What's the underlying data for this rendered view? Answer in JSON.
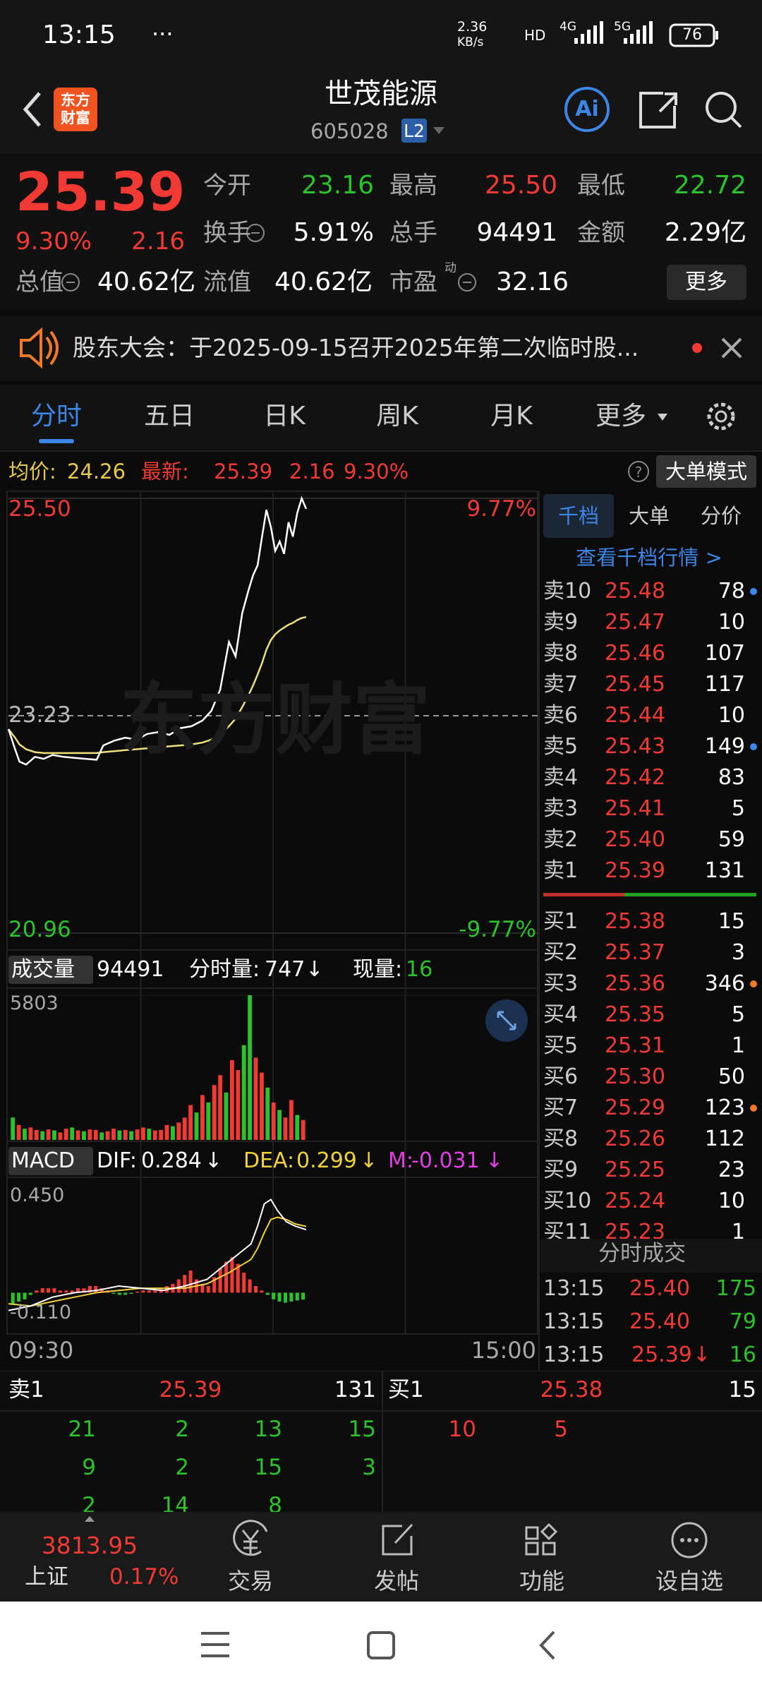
{
  "status_bar": {
    "time": "13:15",
    "dots": "···",
    "net_speed": "2.36",
    "net_unit": "KB/s",
    "hd": "HD",
    "net_4g": "4G",
    "net_5g": "5G",
    "battery": "76"
  },
  "header": {
    "logo": "东方财富",
    "title": "世茂能源",
    "code": "605028",
    "level": "L2",
    "ai": "Ai"
  },
  "quote": {
    "price": "25.39",
    "change_pct": "9.30%",
    "change": "2.16",
    "fields": [
      [
        {
          "label": "今开",
          "value": "23.16",
          "color": "#2bc22b"
        },
        {
          "label": "最高",
          "value": "25.50",
          "color": "#f03a33"
        },
        {
          "label": "最低",
          "value": "22.72",
          "color": "#2bc22b"
        }
      ],
      [
        {
          "label": "换手",
          "value": "5.91%",
          "color": "#ffffff"
        },
        {
          "label": "总手",
          "value": "94491",
          "color": "#ffffff"
        },
        {
          "label": "金额",
          "value": "2.29亿",
          "color": "#ffffff"
        }
      ],
      [
        {
          "label": "总值",
          "value": "40.62亿",
          "color": "#ffffff"
        },
        {
          "label": "流值",
          "value": "40.62亿",
          "color": "#ffffff"
        },
        {
          "label": "市盈",
          "value": "32.16",
          "color": "#ffffff",
          "mark": "动"
        }
      ]
    ],
    "more": "更多"
  },
  "notice": "股东大会：于2025-09-15召开2025年第二次临时股...",
  "tabs": [
    "分时",
    "五日",
    "日K",
    "周K",
    "月K",
    "更多"
  ],
  "info_line": {
    "avg_label": "均价:",
    "avg": "24.26",
    "last_label": "最新:",
    "last": "25.39",
    "change": "2.16",
    "change_pct": "9.30%",
    "mode_button": "大单模式"
  },
  "intraday": {
    "ylim": [
      20.96,
      25.5
    ],
    "xlim": [
      0,
      240
    ],
    "axis_labels": [
      {
        "value": 25.5,
        "label": "25.50"
      },
      {
        "value": 23.23,
        "label": "23.23"
      },
      {
        "value": 20.96,
        "label": "20.96"
      }
    ],
    "pct_labels": [
      {
        "value": 9.77,
        "label": "9.77%"
      },
      {
        "value": -9.77,
        "label": "-9.77%"
      }
    ],
    "time_labels": [
      "09:30",
      "15:00"
    ],
    "watermark": "东方财富",
    "price_color": "#ffffff",
    "avg_color": "#efe07a",
    "minutes": [
      0,
      3,
      5,
      8,
      12,
      16,
      20,
      25,
      30,
      35,
      40,
      43,
      48,
      53,
      58,
      63,
      68,
      73,
      78,
      83,
      88,
      92,
      96,
      100,
      103,
      106,
      109,
      111,
      113,
      115,
      117,
      119,
      121,
      123,
      125,
      127,
      129,
      131,
      133,
      135
    ],
    "price": [
      23.09,
      22.88,
      22.75,
      22.72,
      22.8,
      22.78,
      22.82,
      22.8,
      22.79,
      22.78,
      22.77,
      22.92,
      22.97,
      23.0,
      22.98,
      23.04,
      23.06,
      23.03,
      23.1,
      23.12,
      23.18,
      23.28,
      23.5,
      24.0,
      23.85,
      24.3,
      24.55,
      24.7,
      24.8,
      25.1,
      25.38,
      25.2,
      24.95,
      25.05,
      24.92,
      25.25,
      25.1,
      25.35,
      25.5,
      25.39
    ],
    "avg": [
      23.09,
      23.0,
      22.93,
      22.88,
      22.85,
      22.84,
      22.84,
      22.84,
      22.84,
      22.84,
      22.84,
      22.85,
      22.86,
      22.87,
      22.88,
      22.89,
      22.9,
      22.91,
      22.92,
      22.93,
      22.95,
      22.98,
      23.03,
      23.12,
      23.2,
      23.32,
      23.45,
      23.55,
      23.66,
      23.78,
      23.92,
      24.02,
      24.08,
      24.12,
      24.15,
      24.18,
      24.2,
      24.23,
      24.25,
      24.26
    ]
  },
  "volume": {
    "label": "成交量",
    "total": "94491",
    "minute_label": "分时量:",
    "minute_vol": "747",
    "arrow": "↓",
    "current_label": "现量:",
    "current": "16",
    "ylim": [
      0,
      5803
    ],
    "yticks": [
      5803
    ],
    "values": [
      900,
      600,
      450,
      500,
      400,
      350,
      420,
      380,
      300,
      450,
      500,
      380,
      350,
      420,
      400,
      300,
      350,
      450,
      380,
      400,
      350,
      420,
      500,
      450,
      380,
      400,
      600,
      550,
      700,
      900,
      1400,
      1100,
      1800,
      1500,
      2200,
      2600,
      1900,
      3200,
      2800,
      3800,
      5803,
      3300,
      2700,
      2100,
      1500,
      1200,
      900,
      1600,
      1000,
      800
    ],
    "colors": [
      "#2bc22b",
      "#f03a33",
      "#2bc22b",
      "#f03a33",
      "#f03a33",
      "#2bc22b",
      "#f03a33",
      "#2bc22b",
      "#f03a33",
      "#f03a33",
      "#2bc22b",
      "#f03a33",
      "#2bc22b",
      "#f03a33",
      "#f03a33",
      "#2bc22b",
      "#f03a33",
      "#f03a33",
      "#2bc22b",
      "#f03a33",
      "#2bc22b",
      "#f03a33",
      "#f03a33",
      "#2bc22b",
      "#f03a33",
      "#f03a33",
      "#f03a33",
      "#2bc22b",
      "#f03a33",
      "#f03a33",
      "#f03a33",
      "#2bc22b",
      "#f03a33",
      "#2bc22b",
      "#f03a33",
      "#f03a33",
      "#2bc22b",
      "#f03a33",
      "#f03a33",
      "#2bc22b",
      "#2bc22b",
      "#f03a33",
      "#f03a33",
      "#2bc22b",
      "#f03a33",
      "#2bc22b",
      "#f03a33",
      "#f03a33",
      "#2bc22b",
      "#f03a33"
    ]
  },
  "macd": {
    "label": "MACD",
    "dif_label": "DIF:",
    "dif": "0.284",
    "dea_label": "DEA:",
    "dea": "0.299",
    "m_label": "M:",
    "m": "-0.031",
    "arrow": "↓",
    "ylim": [
      -0.11,
      0.45
    ],
    "yticks": [
      {
        "value": 0.45,
        "label": "0.450"
      },
      {
        "value": -0.11,
        "label": "-0.110"
      }
    ],
    "hist": [
      -0.05,
      -0.04,
      -0.03,
      -0.01,
      0.01,
      0.02,
      0.02,
      0.02,
      0.01,
      0.01,
      0.01,
      0.02,
      0.02,
      0.03,
      0.03,
      0.02,
      0.01,
      -0.005,
      -0.01,
      -0.01,
      -0.005,
      0.005,
      0.01,
      0.01,
      0.01,
      0.02,
      0.03,
      0.04,
      0.06,
      0.08,
      0.1,
      0.06,
      0.04,
      0.03,
      0.07,
      0.11,
      0.14,
      0.16,
      0.13,
      0.09,
      0.06,
      0.03,
      0.01,
      -0.01,
      -0.03,
      -0.04,
      -0.045,
      -0.04,
      -0.035,
      -0.031
    ],
    "line_minutes": [
      0,
      10,
      20,
      30,
      40,
      50,
      60,
      70,
      80,
      90,
      100,
      105,
      110,
      113,
      116,
      119,
      122,
      126,
      130,
      135
    ],
    "dif_values": [
      -0.08,
      -0.06,
      -0.02,
      0.0,
      0.01,
      0.03,
      0.02,
      0.01,
      0.03,
      0.06,
      0.14,
      0.18,
      0.22,
      0.3,
      0.4,
      0.42,
      0.37,
      0.32,
      0.3,
      0.284
    ],
    "dea_values": [
      -0.05,
      -0.06,
      -0.04,
      -0.02,
      0.0,
      0.01,
      0.02,
      0.02,
      0.02,
      0.04,
      0.09,
      0.12,
      0.15,
      0.2,
      0.27,
      0.33,
      0.34,
      0.33,
      0.31,
      0.299
    ]
  },
  "book": {
    "tabs": [
      "千档",
      "大单",
      "分价"
    ],
    "link": "查看千档行情 >",
    "asks": [
      {
        "label": "卖10",
        "price": "25.48",
        "volume": "78",
        "dot": "#3d86e8"
      },
      {
        "label": "卖9",
        "price": "25.47",
        "volume": "10"
      },
      {
        "label": "卖8",
        "price": "25.46",
        "volume": "107"
      },
      {
        "label": "卖7",
        "price": "25.45",
        "volume": "117"
      },
      {
        "label": "卖6",
        "price": "25.44",
        "volume": "10"
      },
      {
        "label": "卖5",
        "price": "25.43",
        "volume": "149",
        "dot": "#3d86e8"
      },
      {
        "label": "卖4",
        "price": "25.42",
        "volume": "83"
      },
      {
        "label": "卖3",
        "price": "25.41",
        "volume": "5"
      },
      {
        "label": "卖2",
        "price": "25.40",
        "volume": "59"
      },
      {
        "label": "卖1",
        "price": "25.39",
        "volume": "131"
      }
    ],
    "bids": [
      {
        "label": "买1",
        "price": "25.38",
        "volume": "15"
      },
      {
        "label": "买2",
        "price": "25.37",
        "volume": "3"
      },
      {
        "label": "买3",
        "price": "25.36",
        "volume": "346",
        "dot": "#f07a2a"
      },
      {
        "label": "买4",
        "price": "25.35",
        "volume": "5"
      },
      {
        "label": "买5",
        "price": "25.31",
        "volume": "1"
      },
      {
        "label": "买6",
        "price": "25.30",
        "volume": "50"
      },
      {
        "label": "买7",
        "price": "25.29",
        "volume": "123",
        "dot": "#f07a2a"
      },
      {
        "label": "买8",
        "price": "25.26",
        "volume": "112"
      },
      {
        "label": "买9",
        "price": "25.25",
        "volume": "23"
      },
      {
        "label": "买10",
        "price": "25.24",
        "volume": "10"
      },
      {
        "label": "买11",
        "price": "25.23",
        "volume": "1"
      }
    ],
    "trades_title": "分时成交",
    "trades": [
      {
        "time": "13:15",
        "price": "25.40",
        "volume": "175"
      },
      {
        "time": "13:15",
        "price": "25.40",
        "volume": "79"
      },
      {
        "time": "13:15",
        "price": "25.39",
        "arrow": "↓",
        "volume": "16"
      }
    ]
  },
  "strip": {
    "ask_label": "卖1",
    "ask_price": "25.39",
    "ask_volume": "131",
    "bid_label": "买1",
    "bid_price": "25.38",
    "bid_volume": "15",
    "ask_rows": [
      [
        "21",
        "2",
        "13",
        "15"
      ],
      [
        "9",
        "2",
        "15",
        "3"
      ],
      [
        "2",
        "14",
        "8"
      ]
    ],
    "bid_rows": [
      [
        "10",
        "5"
      ]
    ]
  },
  "nav": {
    "index_value": "3813.95",
    "index_name": "上证",
    "index_change": "0.17%",
    "items": [
      "交易",
      "发帖",
      "功能",
      "设自选"
    ]
  }
}
